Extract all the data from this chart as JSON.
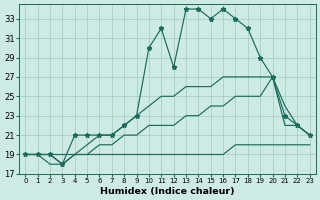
{
  "xlabel": "Humidex (Indice chaleur)",
  "x": [
    0,
    1,
    2,
    3,
    4,
    5,
    6,
    7,
    8,
    9,
    10,
    11,
    12,
    13,
    14,
    15,
    16,
    17,
    18,
    19,
    20,
    21,
    22,
    23
  ],
  "line_main": [
    19,
    19,
    19,
    18,
    21,
    21,
    21,
    21,
    22,
    23,
    30,
    32,
    28,
    34,
    34,
    33,
    34,
    33,
    32,
    29,
    27,
    23,
    22,
    21
  ],
  "line_tri_upper": [
    19,
    19,
    19,
    18,
    19,
    20,
    21,
    21,
    22,
    23,
    24,
    25,
    25,
    26,
    26,
    26,
    27,
    27,
    27,
    27,
    27,
    24,
    22,
    21
  ],
  "line_tri_lower": [
    19,
    19,
    18,
    18,
    19,
    19,
    20,
    20,
    21,
    21,
    22,
    22,
    22,
    23,
    23,
    24,
    24,
    25,
    25,
    25,
    27,
    22,
    22,
    21
  ],
  "line_flat": [
    19,
    19,
    19,
    19,
    19,
    19,
    19,
    19,
    19,
    19,
    19,
    19,
    19,
    19,
    19,
    19,
    19,
    20,
    20,
    20,
    20,
    20,
    20,
    20
  ],
  "ylim": [
    17,
    34.5
  ],
  "xlim": [
    -0.5,
    23.5
  ],
  "yticks": [
    17,
    19,
    21,
    23,
    25,
    27,
    29,
    31,
    33
  ],
  "xticks": [
    0,
    1,
    2,
    3,
    4,
    5,
    6,
    7,
    8,
    9,
    10,
    11,
    12,
    13,
    14,
    15,
    16,
    17,
    18,
    19,
    20,
    21,
    22,
    23
  ],
  "bg_color": "#ceeae5",
  "grid_color": "#a8cec8",
  "line_color": "#1a6b5a",
  "marker": "*",
  "markersize": 3.5,
  "linewidth_main": 0.85,
  "linewidth_smooth": 0.85
}
